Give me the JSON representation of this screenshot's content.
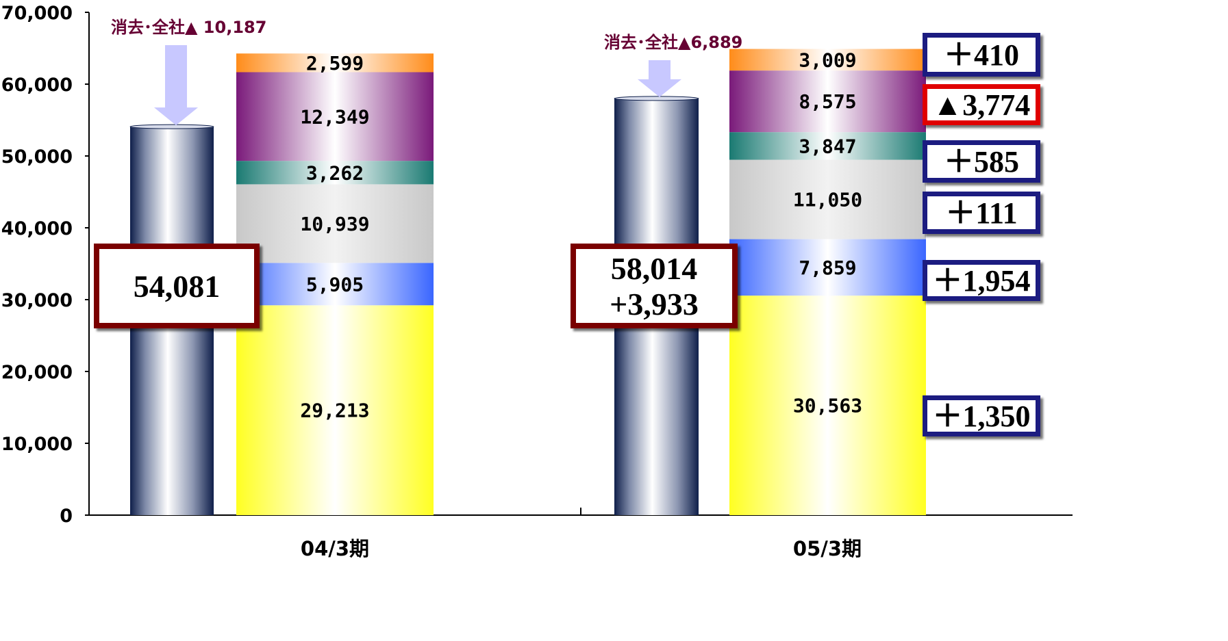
{
  "chart_data": {
    "type": "bar",
    "ylim": [
      0,
      70000
    ],
    "yticks": [
      "0",
      "10,000",
      "20,000",
      "30,000",
      "40,000",
      "50,000",
      "60,000",
      "70,000"
    ],
    "grid": false,
    "categories": [
      "04/3期",
      "05/3期"
    ],
    "totals": [
      {
        "value": 54081,
        "label": "54,081",
        "change": ""
      },
      {
        "value": 58014,
        "label": "58,014",
        "change": "+3,933"
      }
    ],
    "eliminations": [
      {
        "value": -10187,
        "label": "消去･全社▲ 10,187"
      },
      {
        "value": -6889,
        "label": "消去･全社▲6,889"
      }
    ],
    "segments": [
      {
        "color_dark": "#ffff22",
        "values": [
          29213,
          30563
        ],
        "labels": [
          "29,213",
          "30,563"
        ]
      },
      {
        "color_dark": "#3a66ff",
        "values": [
          5905,
          7859
        ],
        "labels": [
          "5,905",
          "7,859"
        ]
      },
      {
        "color_dark": "#c8c8c8",
        "values": [
          10939,
          11050
        ],
        "labels": [
          "10,939",
          "11,050"
        ]
      },
      {
        "color_dark": "#1a7a72",
        "values": [
          3262,
          3847
        ],
        "labels": [
          "3,262",
          "3,847"
        ]
      },
      {
        "color_dark": "#7a1a7a",
        "values": [
          12349,
          8575
        ],
        "labels": [
          "12,349",
          "8,575"
        ]
      },
      {
        "color_dark": "#ff8c1a",
        "values": [
          2599,
          3009
        ],
        "labels": [
          "2,599",
          "3,009"
        ]
      }
    ],
    "changes": [
      {
        "label": "＋1,350",
        "value": 1350,
        "border": "#1a1a80",
        "segment": 0
      },
      {
        "label": "＋1,954",
        "value": 1954,
        "border": "#1a1a80",
        "segment": 1
      },
      {
        "label": "＋111",
        "value": 111,
        "border": "#1a1a80",
        "segment": 2
      },
      {
        "label": "＋585",
        "value": 585,
        "border": "#1a1a80",
        "segment": 3
      },
      {
        "label": "▲3,774",
        "value": -3774,
        "border": "#e00000",
        "segment": 4
      },
      {
        "label": "＋410",
        "value": 410,
        "border": "#1a1a80",
        "segment": 5
      }
    ],
    "colors": {
      "total_box_border": "#7a0000",
      "elim_text": "#660033",
      "arrow_fill": "#c8c8ff",
      "cylinder_dark": "#0f1f4a"
    }
  }
}
